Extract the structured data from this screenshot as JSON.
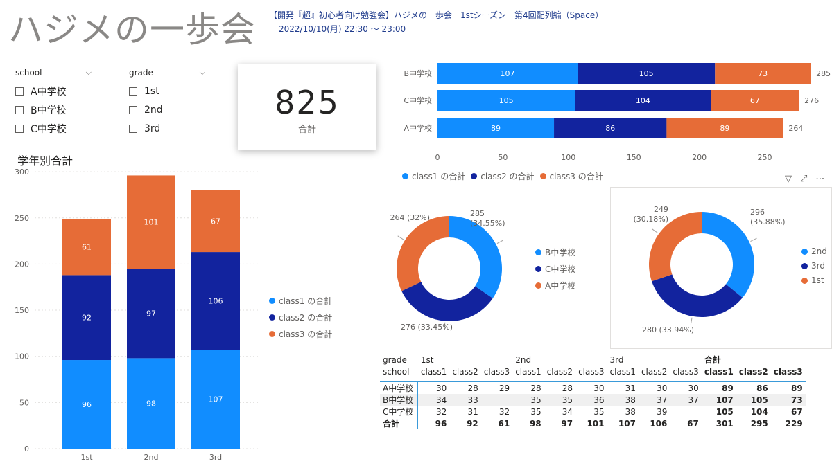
{
  "header": {
    "title": "ハジメの一歩会",
    "link": "【開発『超』初心者向け勉強会】ハジメの一歩会　1stシーズン　第4回配列編（Space）",
    "datetime": "2022/10/10(月) 22:30 ～ 23:00"
  },
  "slicers": {
    "school": {
      "label": "school",
      "options": [
        "A中学校",
        "B中学校",
        "C中学校"
      ]
    },
    "grade": {
      "label": "grade",
      "options": [
        "1st",
        "2nd",
        "3rd"
      ]
    }
  },
  "card": {
    "value": "825",
    "label": "合計"
  },
  "colors": {
    "class1": "#118dff",
    "class2": "#12239e",
    "class3": "#e66c37",
    "grid": "#e1dfdd",
    "axis": "#605e5c"
  },
  "icons": [
    "filter-icon",
    "focus-mode-icon",
    "more-options-icon"
  ],
  "chart_data": [
    {
      "type": "bar",
      "orientation": "horizontal",
      "stacked": true,
      "categories": [
        "B中学校",
        "C中学校",
        "A中学校"
      ],
      "series": [
        {
          "name": "class1 の合計",
          "values": [
            107,
            105,
            89
          ]
        },
        {
          "name": "class2 の合計",
          "values": [
            105,
            104,
            86
          ]
        },
        {
          "name": "class3 の合計",
          "values": [
            73,
            67,
            89
          ]
        }
      ],
      "totals": [
        285,
        276,
        264
      ],
      "xlim": [
        0,
        285
      ],
      "xticks": [
        0,
        50,
        100,
        150,
        200,
        250
      ],
      "legend": "bottom-left"
    },
    {
      "type": "bar",
      "orientation": "vertical",
      "stacked": true,
      "title": "学年別合計",
      "categories": [
        "1st",
        "2nd",
        "3rd"
      ],
      "series": [
        {
          "name": "class1 の合計",
          "values": [
            96,
            98,
            107
          ]
        },
        {
          "name": "class2 の合計",
          "values": [
            92,
            97,
            106
          ]
        },
        {
          "name": "class3 の合計",
          "values": [
            61,
            101,
            67
          ]
        }
      ],
      "ylim": [
        0,
        300
      ],
      "yticks": [
        0,
        50,
        100,
        150,
        200,
        250,
        300
      ],
      "legend": "right"
    },
    {
      "type": "pie",
      "donut": true,
      "labels": [
        "B中学校",
        "C中学校",
        "A中学校"
      ],
      "values": [
        285,
        276,
        264
      ],
      "data_labels": [
        [
          "285",
          "(34.55%)"
        ],
        [
          "276 (33.45%)"
        ],
        [
          "264 (32%)"
        ]
      ],
      "legend": "right"
    },
    {
      "type": "pie",
      "donut": true,
      "labels": [
        "2nd",
        "3rd",
        "1st"
      ],
      "values": [
        296,
        280,
        249
      ],
      "data_labels": [
        [
          "296",
          "(35.88%)"
        ],
        [
          "280 (33.94%)"
        ],
        [
          "249",
          "(30.18%)"
        ]
      ],
      "legend": "right"
    },
    {
      "type": "table",
      "row_header_title": "school",
      "column_header_title": "grade",
      "groups": [
        "1st",
        "2nd",
        "3rd",
        "合計"
      ],
      "subcolumns": [
        "class1",
        "class2",
        "class3"
      ],
      "rows": [
        {
          "label": "A中学校",
          "values": [
            "30",
            "28",
            "29",
            "28",
            "28",
            "30",
            "31",
            "30",
            "30",
            "89",
            "86",
            "89"
          ]
        },
        {
          "label": "B中学校",
          "values": [
            "34",
            "33",
            "",
            "35",
            "35",
            "36",
            "38",
            "37",
            "37",
            "107",
            "105",
            "73"
          ]
        },
        {
          "label": "C中学校",
          "values": [
            "32",
            "31",
            "32",
            "35",
            "34",
            "35",
            "38",
            "39",
            "",
            "105",
            "104",
            "67"
          ]
        },
        {
          "label": "合計",
          "values": [
            "96",
            "92",
            "61",
            "98",
            "97",
            "101",
            "107",
            "106",
            "67",
            "301",
            "295",
            "229"
          ]
        }
      ]
    }
  ]
}
